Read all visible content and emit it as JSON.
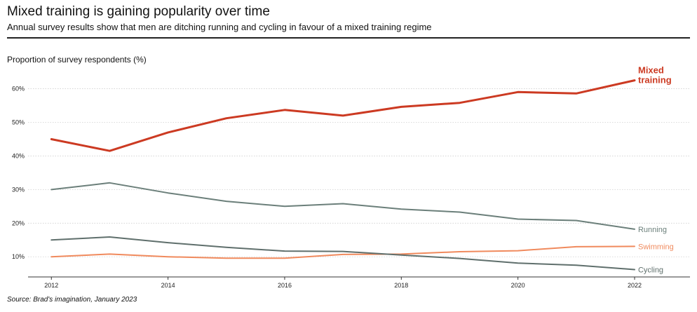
{
  "header": {
    "title": "Mixed training is gaining popularity over time",
    "subtitle": "Annual survey results show that men are ditching running and cycling in favour of a mixed training regime"
  },
  "footer": {
    "source": "Source: Brad's imagination, January 2023"
  },
  "chart_data": {
    "type": "line",
    "title": "Mixed training is gaining popularity over time",
    "subtitle": "Annual survey results show that men are ditching running and cycling in favour of a mixed training regime",
    "xlabel": "",
    "ylabel": "Proportion of survey respondents (%)",
    "x": [
      2012,
      2013,
      2014,
      2015,
      2016,
      2017,
      2018,
      2019,
      2020,
      2021,
      2022
    ],
    "xticks": [
      2012,
      2014,
      2016,
      2018,
      2020,
      2022
    ],
    "xtick_labels": [
      "2012",
      "2014",
      "2016",
      "2018",
      "2020",
      "2022"
    ],
    "yticks": [
      10,
      20,
      30,
      40,
      50,
      60
    ],
    "ytick_labels": [
      "10%",
      "20%",
      "30%",
      "40%",
      "50%",
      "60%"
    ],
    "ylim": [
      4,
      67
    ],
    "xlim": [
      2011.6,
      2022.95
    ],
    "grid": "horizontal dotted",
    "legend": "labels at line ends (right)",
    "series": [
      {
        "name": "Mixed training",
        "label_lines": [
          "Mixed",
          "training"
        ],
        "color": "#cc3a22",
        "values": [
          45,
          41.5,
          47,
          51.2,
          53.7,
          52,
          54.6,
          55.8,
          59,
          58.6,
          62.5
        ]
      },
      {
        "name": "Running",
        "label_lines": [
          "Running"
        ],
        "color": "#6b7f7a",
        "values": [
          30,
          32,
          29,
          26.5,
          25,
          25.8,
          24.2,
          23.3,
          21.2,
          20.8,
          18.2
        ]
      },
      {
        "name": "Swimming",
        "label_lines": [
          "Swimming"
        ],
        "color": "#f08a5d",
        "values": [
          10,
          10.8,
          10,
          9.6,
          9.6,
          10.7,
          10.8,
          11.5,
          11.8,
          13,
          13.1
        ]
      },
      {
        "name": "Cycling",
        "label_lines": [
          "Cycling"
        ],
        "color": "#5f6f6c",
        "values": [
          15,
          15.9,
          14.2,
          12.8,
          11.7,
          11.6,
          10.5,
          9.5,
          8.1,
          7.5,
          6.2
        ]
      }
    ]
  }
}
